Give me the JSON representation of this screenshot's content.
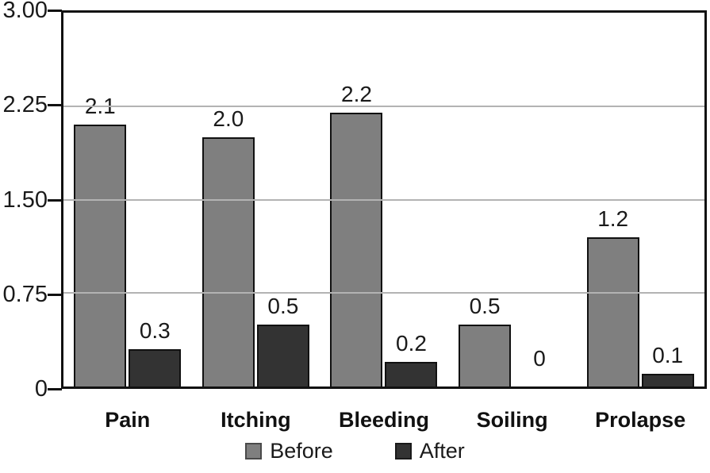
{
  "chart_data": {
    "type": "bar",
    "title": "",
    "xlabel": "",
    "ylabel": "",
    "categories": [
      "Pain",
      "Itching",
      "Bleeding",
      "Soiling",
      "Prolapse"
    ],
    "series": [
      {
        "name": "Before",
        "color": "#7f7f7f",
        "swatch_border": "#4a4a4a",
        "values": [
          2.1,
          2.0,
          2.2,
          0.5,
          1.2
        ],
        "value_labels": [
          "2.1",
          "2.0",
          "2.2",
          "0.5",
          "1.2"
        ]
      },
      {
        "name": "After",
        "color": "#333333",
        "swatch_border": "#1a1a1a",
        "values": [
          0.3,
          0.5,
          0.2,
          0,
          0.1
        ],
        "value_labels": [
          "0.3",
          "0.5",
          "0.2",
          "0",
          "0.1"
        ]
      }
    ],
    "ylim": [
      0,
      3.0
    ],
    "yticks": [
      {
        "value": 3.0,
        "label": "3.00"
      },
      {
        "value": 2.25,
        "label": "2.25"
      },
      {
        "value": 1.5,
        "label": "1.50"
      },
      {
        "value": 0.75,
        "label": "0.75"
      },
      {
        "value": 0,
        "label": "0"
      }
    ],
    "grid": true,
    "legend_position": "bottom",
    "colors": {
      "gridline": "#b3b3b3",
      "axis": "#111111",
      "background": "#ffffff",
      "text": "#1a1a1a"
    }
  }
}
